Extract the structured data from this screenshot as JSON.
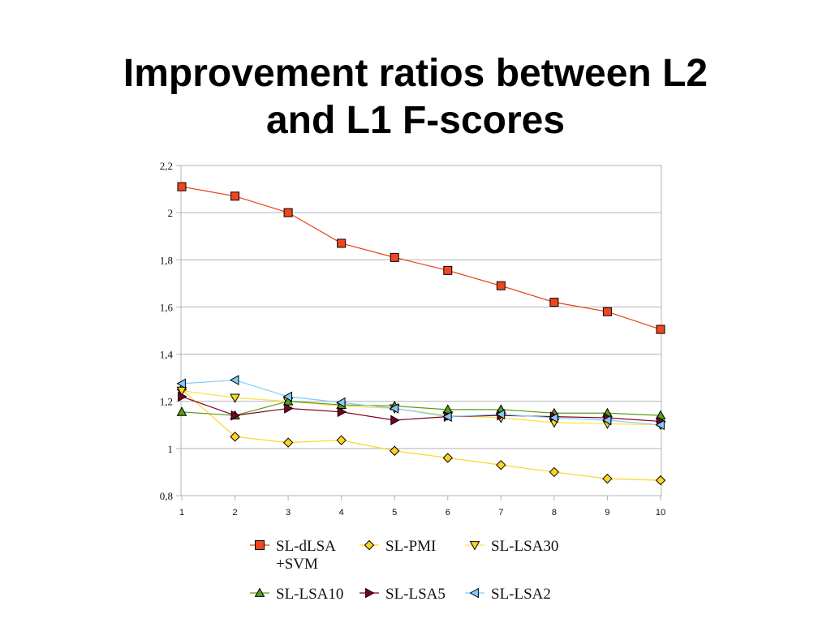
{
  "slide": {
    "title_line1": "Improvement ratios between L2",
    "title_line2": "and L1 F-scores"
  },
  "chart_data": {
    "type": "line",
    "title": "",
    "xlabel": "",
    "ylabel": "",
    "x": [
      1,
      2,
      3,
      4,
      5,
      6,
      7,
      8,
      9,
      10
    ],
    "x_tick_labels": [
      "1",
      "2",
      "3",
      "4",
      "5",
      "6",
      "7",
      "8",
      "9",
      "10"
    ],
    "ylim": [
      0.8,
      2.2
    ],
    "y_ticks": [
      0.8,
      1,
      1.2,
      1.4,
      1.6,
      1.8,
      2,
      2.2
    ],
    "y_tick_labels": [
      "0,8",
      "1",
      "1,2",
      "1,4",
      "1,6",
      "1,8",
      "2",
      "2,2"
    ],
    "grid": "horizontal",
    "legend_position": "bottom",
    "series": [
      {
        "name": "SL-dLSA",
        "name_line2": "+SVM",
        "marker": "square",
        "color": "#e8401c",
        "fill": "#f0461e",
        "values": [
          2.11,
          2.07,
          2.0,
          1.87,
          1.81,
          1.755,
          1.69,
          1.62,
          1.58,
          1.505
        ]
      },
      {
        "name": "SL-PMI",
        "marker": "diamond",
        "color": "#ffd320",
        "fill": "#ffd320",
        "values": [
          1.25,
          1.05,
          1.025,
          1.035,
          0.99,
          0.96,
          0.93,
          0.9,
          0.872,
          0.865
        ]
      },
      {
        "name": "SL-LSA30",
        "marker": "triangle-down",
        "color": "#ffe040",
        "fill": "#ffd320",
        "values": [
          1.245,
          1.215,
          1.2,
          1.18,
          1.17,
          1.14,
          1.13,
          1.11,
          1.105,
          1.1
        ]
      },
      {
        "name": "SL-LSA10",
        "marker": "triangle-up",
        "color": "#579d1c",
        "fill": "#579d1c",
        "values": [
          1.155,
          1.14,
          1.2,
          1.185,
          1.18,
          1.165,
          1.165,
          1.15,
          1.15,
          1.14
        ]
      },
      {
        "name": "SL-LSA5",
        "marker": "triangle-right",
        "color": "#7e0021",
        "fill": "#7e0021",
        "values": [
          1.22,
          1.14,
          1.17,
          1.155,
          1.12,
          1.135,
          1.14,
          1.135,
          1.13,
          1.115
        ]
      },
      {
        "name": "SL-LSA2",
        "marker": "triangle-left",
        "color": "#83caff",
        "fill": "#83caff",
        "values": [
          1.275,
          1.29,
          1.22,
          1.195,
          1.17,
          1.135,
          1.145,
          1.13,
          1.12,
          1.1
        ]
      }
    ]
  }
}
